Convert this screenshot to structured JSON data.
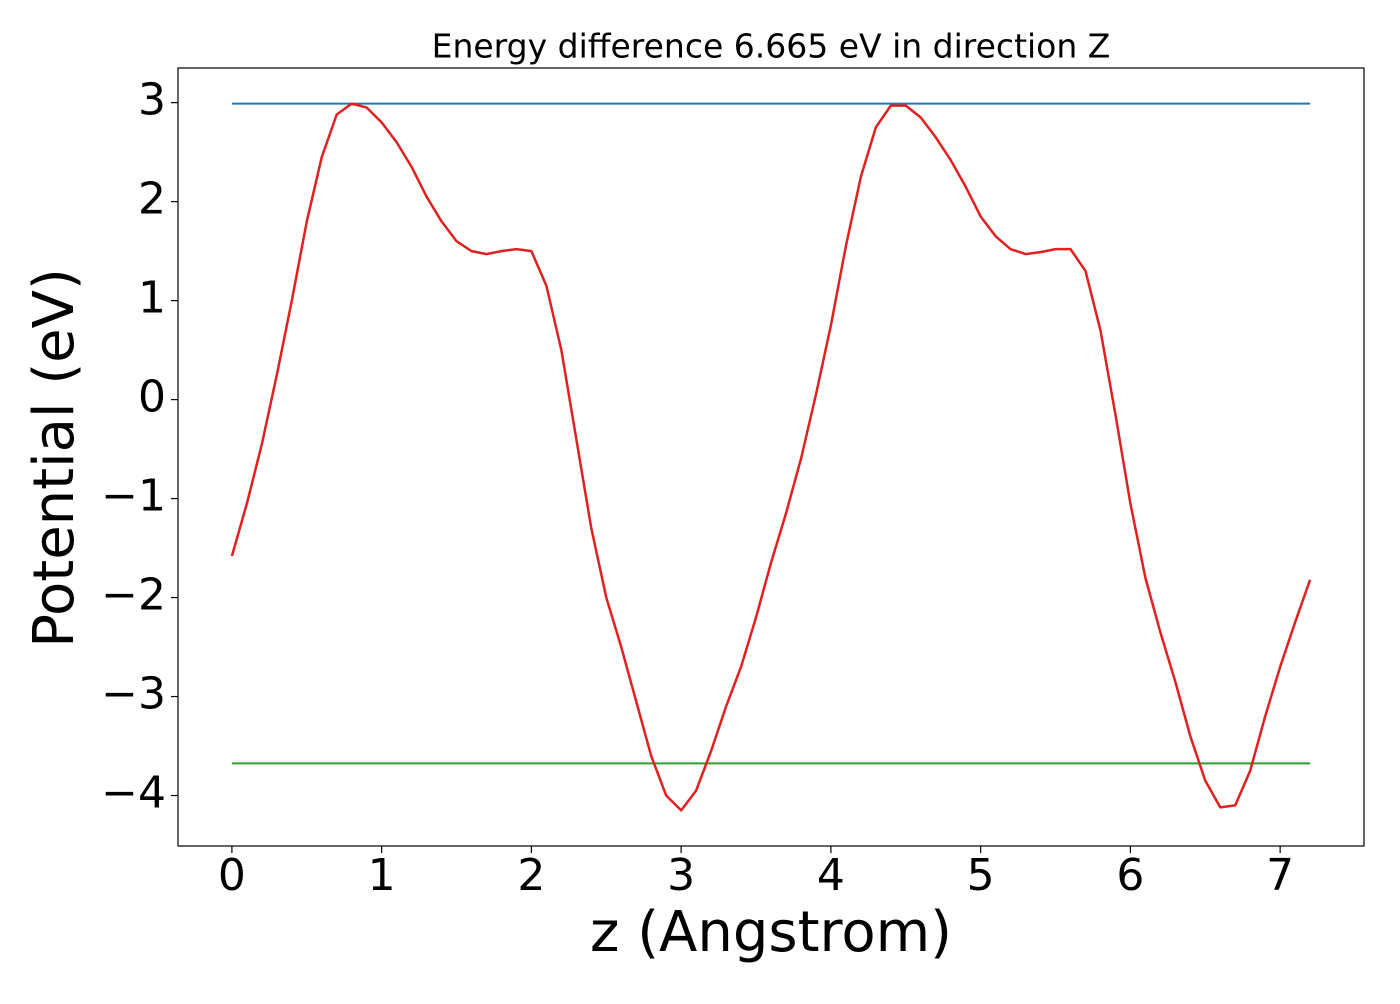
{
  "chart_data": {
    "type": "line",
    "title": "Energy difference 6.665 eV in direction Z",
    "xlabel": "z (Angstrom)",
    "ylabel": "Potential (eV)",
    "x": [
      0,
      0.1,
      0.2,
      0.3,
      0.4,
      0.5,
      0.6,
      0.7,
      0.8,
      0.9,
      1.0,
      1.1,
      1.2,
      1.3,
      1.4,
      1.5,
      1.6,
      1.7,
      1.8,
      1.9,
      2.0,
      2.1,
      2.2,
      2.3,
      2.4,
      2.5,
      2.6,
      2.7,
      2.8,
      2.9,
      3.0,
      3.1,
      3.2,
      3.3,
      3.4,
      3.5,
      3.6,
      3.7,
      3.8,
      3.9,
      4.0,
      4.1,
      4.2,
      4.3,
      4.4,
      4.5,
      4.6,
      4.7,
      4.8,
      4.9,
      5.0,
      5.1,
      5.2,
      5.3,
      5.4,
      5.5,
      5.6,
      5.7,
      5.8,
      5.9,
      6.0,
      6.1,
      6.2,
      6.3,
      6.4,
      6.5,
      6.6,
      6.7,
      6.8,
      6.9,
      7.0,
      7.1,
      7.2
    ],
    "series": [
      {
        "color": "#e32020",
        "values": [
          -1.58,
          -1.05,
          -0.45,
          0.25,
          1.0,
          1.8,
          2.45,
          2.88,
          2.99,
          2.95,
          2.8,
          2.6,
          2.35,
          2.05,
          1.8,
          1.6,
          1.5,
          1.47,
          1.5,
          1.52,
          1.5,
          1.15,
          0.5,
          -0.4,
          -1.3,
          -2.0,
          -2.5,
          -3.05,
          -3.6,
          -4.0,
          -4.15,
          -3.95,
          -3.55,
          -3.1,
          -2.7,
          -2.2,
          -1.65,
          -1.15,
          -0.6,
          0.05,
          0.75,
          1.55,
          2.25,
          2.75,
          2.97,
          2.97,
          2.85,
          2.65,
          2.42,
          2.15,
          1.85,
          1.65,
          1.52,
          1.47,
          1.49,
          1.52,
          1.52,
          1.3,
          0.7,
          -0.15,
          -1.05,
          -1.8,
          -2.35,
          -2.85,
          -3.4,
          -3.85,
          -4.12,
          -4.1,
          -3.75,
          -3.2,
          -2.7,
          -2.25,
          -1.82
        ]
      }
    ],
    "hlines": [
      {
        "y": 2.99,
        "color": "#1f77b4"
      },
      {
        "y": -3.675,
        "color": "#2ca02c"
      }
    ],
    "xlim": [
      -0.36,
      7.56
    ],
    "xticks": [
      0,
      1,
      2,
      3,
      4,
      5,
      6,
      7
    ],
    "ylim": [
      -4.51,
      3.35
    ],
    "yticks": [
      {
        "value": -4,
        "label": "−4"
      },
      {
        "value": -3,
        "label": "−3"
      },
      {
        "value": -2,
        "label": "−2"
      },
      {
        "value": -1,
        "label": "−1"
      },
      0,
      1,
      2,
      3
    ]
  }
}
